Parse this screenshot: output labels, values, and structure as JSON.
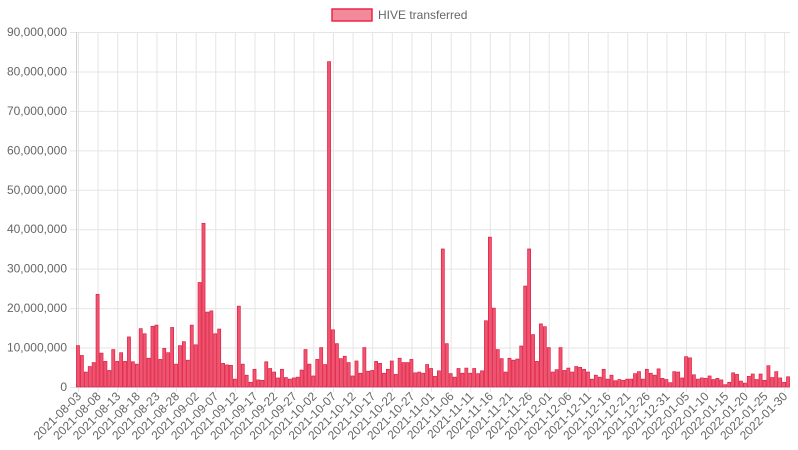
{
  "chart_data": {
    "type": "bar",
    "legend": {
      "label": "HIVE transferred",
      "position": "top",
      "color_fill": "#f28a9c",
      "color_border": "#e8284c"
    },
    "colors": {
      "bar_fill": "#f0546f",
      "bar_border": "#d8153c",
      "grid": "#e5e5e5",
      "axis_text": "#666666"
    },
    "grid": true,
    "ylim": [
      0,
      90000000
    ],
    "y_ticks": [
      "0",
      "10,000,000",
      "20,000,000",
      "30,000,000",
      "40,000,000",
      "50,000,000",
      "60,000,000",
      "70,000,000",
      "80,000,000",
      "90,000,000"
    ],
    "start_date": "2021-08-03",
    "end_date": "2022-01-30",
    "x_tick_labels": [
      "2021-08-03",
      "2021-08-08",
      "2021-08-13",
      "2021-08-18",
      "2021-08-23",
      "2021-08-28",
      "2021-09-02",
      "2021-09-07",
      "2021-09-12",
      "2021-09-17",
      "2021-09-22",
      "2021-09-27",
      "2021-10-02",
      "2021-10-07",
      "2021-10-12",
      "2021-10-17",
      "2021-10-22",
      "2021-10-27",
      "2021-11-01",
      "2021-11-06",
      "2021-11-11",
      "2021-11-16",
      "2021-11-21",
      "2021-11-26",
      "2021-12-01",
      "2021-12-06",
      "2021-12-11",
      "2021-12-16",
      "2021-12-21",
      "2021-12-26",
      "2021-12-31",
      "2022-01-05",
      "2022-01-10",
      "2022-01-15",
      "2022-01-20",
      "2022-01-25",
      "2022-01-30"
    ],
    "values": [
      10500000,
      8000000,
      3800000,
      5200000,
      6200000,
      23500000,
      8600000,
      6500000,
      4200000,
      9500000,
      6500000,
      8700000,
      6500000,
      12700000,
      6400000,
      5800000,
      14800000,
      13500000,
      7300000,
      15400000,
      15700000,
      7000000,
      9800000,
      8700000,
      15100000,
      5800000,
      10500000,
      11500000,
      6800000,
      15700000,
      10700000,
      26500000,
      41500000,
      19000000,
      19300000,
      13500000,
      14700000,
      6000000,
      5600000,
      5500000,
      2000000,
      20500000,
      5800000,
      3000000,
      1200000,
      4500000,
      1800000,
      1700000,
      6400000,
      4700000,
      3800000,
      2300000,
      4500000,
      2400000,
      2000000,
      2300000,
      2500000,
      4300000,
      9500000,
      5800000,
      2800000,
      7000000,
      10000000,
      5700000,
      82500000,
      14500000,
      11000000,
      7200000,
      7800000,
      6200000,
      2800000,
      6600000,
      3500000,
      10000000,
      4000000,
      4200000,
      6500000,
      6000000,
      3500000,
      4500000,
      6600000,
      3200000,
      7300000,
      6200000,
      6200000,
      7000000,
      3600000,
      3800000,
      3500000,
      5700000,
      4700000,
      2700000,
      4100000,
      35000000,
      11000000,
      3400000,
      2500000,
      4700000,
      3500000,
      4800000,
      3500000,
      4700000,
      3400000,
      4100000,
      16800000,
      38000000,
      20000000,
      9500000,
      7200000,
      3800000,
      7300000,
      6800000,
      7100000,
      10400000,
      25600000,
      35000000,
      13300000,
      6500000,
      16000000,
      15300000,
      10000000,
      3800000,
      4400000,
      10000000,
      4200000,
      4800000,
      3800000,
      5200000,
      5000000,
      4500000,
      3800000,
      2000000,
      3000000,
      2500000,
      4500000,
      2000000,
      3000000,
      1600000,
      1900000,
      1700000,
      2000000,
      2000000,
      3400000,
      3900000,
      2000000,
      4500000,
      3500000,
      3000000,
      4600000,
      2200000,
      1900000,
      1100000,
      3900000,
      3800000,
      2300000,
      7700000,
      7400000,
      3100000,
      2000000,
      2300000,
      2200000,
      2800000,
      1900000,
      2200000,
      1800000,
      600000,
      1200000,
      3600000,
      3200000,
      1500000,
      1000000,
      2700000,
      3300000,
      1900000,
      3300000,
      1700000,
      5400000,
      2400000,
      3900000,
      2300000,
      1200000,
      2600000
    ]
  }
}
